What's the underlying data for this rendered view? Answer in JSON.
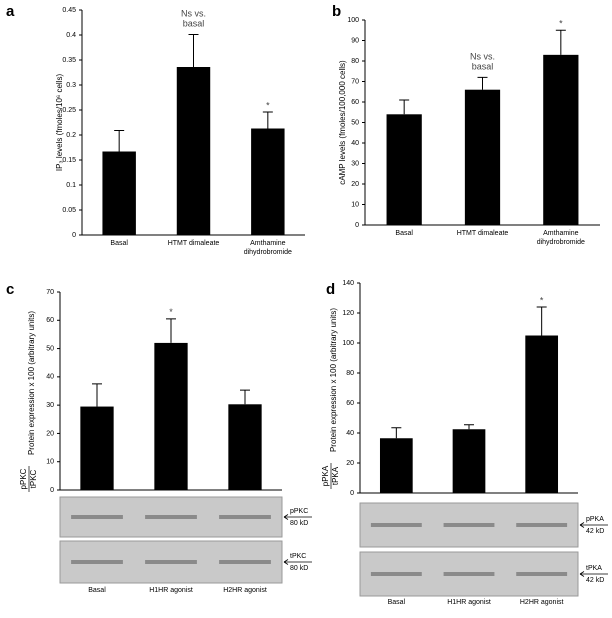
{
  "chart_data": [
    {
      "type": "bar",
      "panel": "a",
      "ylabel": "IP₃ levels (fmoles/10⁶ cells)",
      "categories": [
        "Basal",
        "HTMT dimaleate",
        "Amthamine dihydrobromide"
      ],
      "values": [
        0.167,
        0.336,
        0.213
      ],
      "errors": [
        0.042,
        0.065,
        0.033
      ],
      "annotations": [
        null,
        "Ns vs. basal",
        "*"
      ],
      "color": "#000000",
      "ylim": [
        0,
        0.45
      ],
      "yticks": [
        0,
        0.05,
        0.1,
        0.15,
        0.2,
        0.25,
        0.3,
        0.35,
        0.4,
        0.45
      ]
    },
    {
      "type": "bar",
      "panel": "b",
      "ylabel": "cAMP levels (fmoles/100,000 cells)",
      "categories": [
        "Basal",
        "HTMT dimaleate",
        "Amthamine dihydrobromide"
      ],
      "values": [
        54,
        66,
        83
      ],
      "errors": [
        7,
        6,
        12
      ],
      "annotations": [
        null,
        "Ns vs. basal",
        "*"
      ],
      "color": "#000000",
      "ylim": [
        0,
        100
      ],
      "yticks": [
        0,
        10,
        20,
        30,
        40,
        50,
        60,
        70,
        80,
        90,
        100
      ]
    },
    {
      "type": "bar",
      "panel": "c",
      "ylabel_numerator": "pPKC",
      "ylabel_denominator": "tPKC",
      "ylabel": "Protein expression x 100 (arbitrary units)",
      "categories": [
        "Basal",
        "H1HR agonist",
        "H2HR agonist"
      ],
      "values": [
        29.5,
        52,
        30.3
      ],
      "errors": [
        8,
        8.5,
        5
      ],
      "annotations": [
        null,
        "*",
        null
      ],
      "color": "#000000",
      "ylim": [
        0,
        70
      ],
      "yticks": [
        0,
        10,
        20,
        30,
        40,
        50,
        60,
        70
      ],
      "blot_labels": [
        {
          "name": "pPKC",
          "size": "80 kD"
        },
        {
          "name": "tPKC",
          "size": "80 kD"
        }
      ]
    },
    {
      "type": "bar",
      "panel": "d",
      "ylabel_numerator": "pPKA",
      "ylabel_denominator": "tPKA",
      "ylabel": "Protein expression x 100 (arbitrary units)",
      "categories": [
        "Basal",
        "H1HR agonist",
        "H2HR agonist"
      ],
      "values": [
        36.5,
        42.5,
        105
      ],
      "errors": [
        7,
        3,
        19
      ],
      "annotations": [
        null,
        null,
        "*"
      ],
      "color": "#000000",
      "ylim": [
        0,
        140
      ],
      "yticks": [
        0,
        20,
        40,
        60,
        80,
        100,
        120,
        140
      ],
      "blot_labels": [
        {
          "name": "pPKA",
          "size": "42 kD"
        },
        {
          "name": "tPKA",
          "size": "42 kD"
        }
      ]
    }
  ]
}
